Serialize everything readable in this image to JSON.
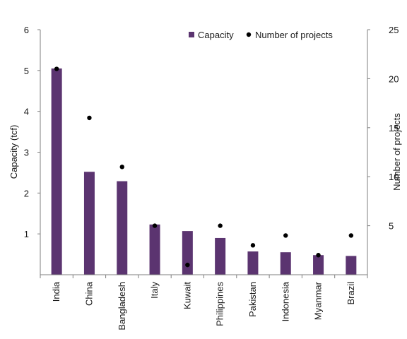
{
  "chart_data": {
    "type": "bar",
    "categories": [
      "India",
      "China",
      "Bangladesh",
      "Italy",
      "Kuwait",
      "Philippines",
      "Pakistan",
      "Indonesia",
      "Myanmar",
      "Brazil"
    ],
    "series": [
      {
        "name": "Capacity",
        "type": "bar",
        "axis": "left",
        "color": "#5b3470",
        "values": [
          5.05,
          2.52,
          2.29,
          1.23,
          1.07,
          0.9,
          0.57,
          0.55,
          0.48,
          0.46
        ]
      },
      {
        "name": "Number of projects",
        "type": "scatter",
        "axis": "right",
        "color": "#000000",
        "values": [
          21,
          16,
          11,
          5,
          1,
          5,
          3,
          4,
          2,
          4
        ]
      }
    ],
    "ylabel": "Capacity (tcf)",
    "y2label": "Number of projects",
    "ylim": [
      0,
      6
    ],
    "y2lim": [
      0,
      25
    ],
    "yticks": [
      "1",
      "2",
      "3",
      "4",
      "5",
      "6"
    ],
    "y2ticks": [
      "5",
      "10",
      "15",
      "20",
      "25"
    ],
    "grid": false,
    "legend_position": "top-right"
  }
}
